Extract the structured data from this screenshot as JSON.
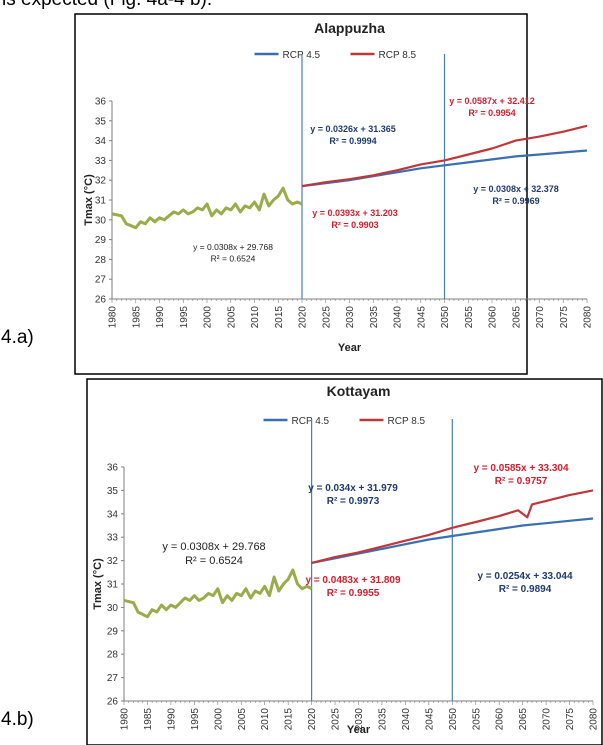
{
  "page": {
    "top_text": "is expected (Fig. 4a-4 b)."
  },
  "panels": [
    {
      "label": "4.a)"
    },
    {
      "label": "4.b)"
    }
  ],
  "colors": {
    "observed": "#9aab49",
    "rcp45": "#3a6fb0",
    "rcp85": "#c0373b",
    "divider": "#4a7ebb",
    "eq_dark": "#1f3a70",
    "eq_red": "#d02030"
  },
  "chart_data": [
    {
      "type": "line",
      "title": "Alappuzha",
      "xlabel": "Year",
      "ylabel": "Tmax (°C)",
      "xlim": [
        1980,
        2080
      ],
      "ylim": [
        26,
        36
      ],
      "x_ticks": [
        "1980",
        "1985",
        "1990",
        "1995",
        "2000",
        "2005",
        "2010",
        "2015",
        "2020",
        "2025",
        "2030",
        "2035",
        "2040",
        "2045",
        "2050",
        "2055",
        "2060",
        "2065",
        "2070",
        "2075",
        "2080"
      ],
      "y_ticks": [
        "26",
        "27",
        "28",
        "29",
        "30",
        "31",
        "32",
        "33",
        "34",
        "35",
        "36"
      ],
      "legend": [
        "RCP 4.5",
        "RCP 8.5"
      ],
      "vlines": [
        2020,
        2050
      ],
      "series": [
        {
          "name": "",
          "x": [
            1980,
            1982,
            1983,
            1984,
            1985,
            1986,
            1987,
            1988,
            1989,
            1990,
            1991,
            1992,
            1993,
            1994,
            1995,
            1996,
            1997,
            1998,
            1999,
            2000,
            2001,
            2002,
            2003,
            2004,
            2005,
            2006,
            2007,
            2008,
            2009,
            2010,
            2011,
            2012,
            2013,
            2014,
            2015,
            2016,
            2017,
            2018,
            2019,
            2020
          ],
          "y": [
            30.3,
            30.2,
            29.8,
            29.7,
            29.6,
            29.9,
            29.8,
            30.1,
            29.9,
            30.1,
            30.0,
            30.2,
            30.4,
            30.3,
            30.5,
            30.3,
            30.4,
            30.6,
            30.5,
            30.8,
            30.2,
            30.5,
            30.3,
            30.6,
            30.5,
            30.8,
            30.4,
            30.7,
            30.6,
            30.9,
            30.5,
            31.3,
            30.7,
            31.0,
            31.2,
            31.6,
            31.0,
            30.8,
            30.9,
            30.8
          ]
        },
        {
          "name": "RCP 4.5",
          "x": [
            2020,
            2025,
            2030,
            2035,
            2040,
            2045,
            2050,
            2055,
            2060,
            2065,
            2070,
            2075,
            2080
          ],
          "y": [
            31.7,
            31.85,
            32.0,
            32.2,
            32.4,
            32.6,
            32.75,
            32.9,
            33.05,
            33.2,
            33.3,
            33.4,
            33.5
          ]
        },
        {
          "name": "RCP 8.5",
          "x": [
            2020,
            2025,
            2030,
            2035,
            2040,
            2045,
            2050,
            2055,
            2060,
            2065,
            2070,
            2075,
            2080
          ],
          "y": [
            31.7,
            31.9,
            32.05,
            32.25,
            32.5,
            32.8,
            33.0,
            33.3,
            33.6,
            34.0,
            34.2,
            34.45,
            34.75
          ]
        }
      ],
      "equations": [
        {
          "line1": "y = 0.0308x + 29.768",
          "line2": "R² = 0.6524",
          "style": "plain"
        },
        {
          "line1": "y = 0.0326x + 31.365",
          "line2": "R² = 0.9994",
          "style": "dark"
        },
        {
          "line1": "y = 0.0393x + 31.203",
          "line2": "R² = 0.9903",
          "style": "red"
        },
        {
          "line1": "y = 0.0587x + 32.412",
          "line2": "R² = 0.9954",
          "style": "red"
        },
        {
          "line1": "y = 0.0308x + 32.378",
          "line2": "R² = 0.9969",
          "style": "dark"
        }
      ]
    },
    {
      "type": "line",
      "title": "Kottayam",
      "xlabel": "Year",
      "ylabel": "Tmax (°C)",
      "xlim": [
        1980,
        2080
      ],
      "ylim": [
        26,
        36
      ],
      "x_ticks": [
        "1980",
        "1985",
        "1990",
        "1995",
        "2000",
        "2005",
        "2010",
        "2015",
        "2020",
        "2025",
        "2030",
        "2035",
        "2040",
        "2045",
        "2050",
        "2055",
        "2060",
        "2065",
        "2070",
        "2075",
        "2080"
      ],
      "y_ticks": [
        "26",
        "27",
        "28",
        "29",
        "30",
        "31",
        "32",
        "33",
        "34",
        "35",
        "36"
      ],
      "legend": [
        "RCP 4.5",
        "RCP 8.5"
      ],
      "vlines": [
        2020,
        2050
      ],
      "series": [
        {
          "name": "",
          "x": [
            1980,
            1982,
            1983,
            1984,
            1985,
            1986,
            1987,
            1988,
            1989,
            1990,
            1991,
            1992,
            1993,
            1994,
            1995,
            1996,
            1997,
            1998,
            1999,
            2000,
            2001,
            2002,
            2003,
            2004,
            2005,
            2006,
            2007,
            2008,
            2009,
            2010,
            2011,
            2012,
            2013,
            2014,
            2015,
            2016,
            2017,
            2018,
            2019,
            2020
          ],
          "y": [
            30.3,
            30.2,
            29.8,
            29.7,
            29.6,
            29.9,
            29.8,
            30.1,
            29.9,
            30.1,
            30.0,
            30.2,
            30.4,
            30.3,
            30.5,
            30.3,
            30.4,
            30.6,
            30.5,
            30.8,
            30.2,
            30.5,
            30.3,
            30.6,
            30.5,
            30.8,
            30.4,
            30.7,
            30.6,
            30.9,
            30.5,
            31.3,
            30.7,
            31.0,
            31.2,
            31.6,
            31.0,
            30.8,
            30.9,
            30.8
          ]
        },
        {
          "name": "RCP 4.5",
          "x": [
            2020,
            2025,
            2030,
            2035,
            2040,
            2045,
            2050,
            2055,
            2060,
            2065,
            2070,
            2075,
            2080
          ],
          "y": [
            31.9,
            32.1,
            32.3,
            32.5,
            32.7,
            32.9,
            33.05,
            33.2,
            33.35,
            33.5,
            33.6,
            33.7,
            33.8
          ]
        },
        {
          "name": "RCP 8.5",
          "x": [
            2020,
            2025,
            2030,
            2035,
            2040,
            2045,
            2050,
            2055,
            2060,
            2064,
            2066,
            2067,
            2070,
            2075,
            2080
          ],
          "y": [
            31.9,
            32.15,
            32.35,
            32.6,
            32.85,
            33.1,
            33.4,
            33.65,
            33.9,
            34.15,
            33.85,
            34.4,
            34.55,
            34.8,
            35.0
          ]
        }
      ],
      "equations": [
        {
          "line1": "y = 0.0308x + 29.768",
          "line2": "R² = 0.6524",
          "style": "plain"
        },
        {
          "line1": "y = 0.034x + 31.979",
          "line2": "R² = 0.9973",
          "style": "dark"
        },
        {
          "line1": "y = 0.0483x + 31.809",
          "line2": "R² = 0.9955",
          "style": "red"
        },
        {
          "line1": "y = 0.0585x + 33.304",
          "line2": "R² = 0.9757",
          "style": "red"
        },
        {
          "line1": "y = 0.0254x + 33.044",
          "line2": "R² = 0.9894",
          "style": "dark"
        }
      ]
    }
  ]
}
